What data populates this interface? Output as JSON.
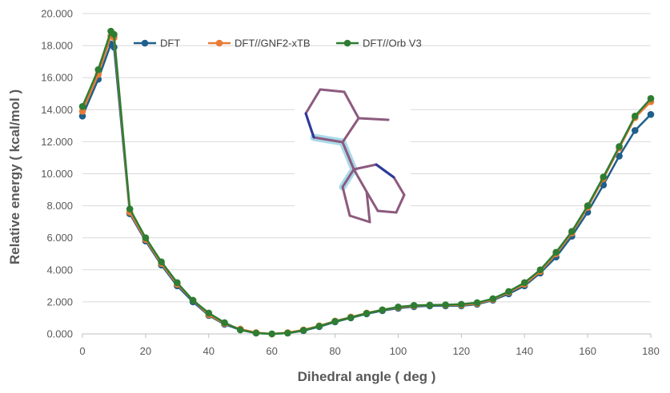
{
  "chart_data": {
    "type": "line",
    "title": "",
    "xlabel": "Dihedral angle ( deg )",
    "ylabel": "Relative energy ( kcal/mol )",
    "xlim": [
      0,
      180
    ],
    "ylim": [
      0,
      20
    ],
    "xticks": [
      0,
      20,
      40,
      60,
      80,
      100,
      120,
      140,
      160,
      180
    ],
    "yticks": [
      "0.000",
      "2.000",
      "4.000",
      "6.000",
      "8.000",
      "10.000",
      "12.000",
      "14.000",
      "16.000",
      "18.000",
      "20.000"
    ],
    "grid": "horizontal",
    "legend_position": "top",
    "x": [
      0,
      5,
      9,
      10,
      15,
      20,
      25,
      30,
      35,
      40,
      45,
      50,
      55,
      60,
      65,
      70,
      75,
      80,
      85,
      90,
      95,
      100,
      105,
      110,
      115,
      120,
      125,
      130,
      135,
      140,
      145,
      150,
      155,
      160,
      165,
      170,
      175,
      180
    ],
    "series": [
      {
        "name": "DFT",
        "color": "#1f5f8b",
        "values": [
          13.6,
          15.9,
          18.1,
          17.9,
          7.5,
          5.8,
          4.3,
          3.0,
          2.0,
          1.15,
          0.6,
          0.25,
          0.05,
          0.0,
          0.05,
          0.2,
          0.45,
          0.75,
          1.0,
          1.25,
          1.45,
          1.6,
          1.7,
          1.75,
          1.75,
          1.75,
          1.85,
          2.1,
          2.5,
          3.0,
          3.8,
          4.8,
          6.1,
          7.6,
          9.3,
          11.1,
          12.7,
          13.7
        ]
      },
      {
        "name": "DFT//GNF2-xTB",
        "color": "#e97b36",
        "values": [
          13.9,
          16.2,
          18.6,
          18.5,
          7.6,
          5.9,
          4.4,
          3.1,
          2.1,
          1.2,
          0.65,
          0.3,
          0.08,
          0.0,
          0.08,
          0.25,
          0.5,
          0.8,
          1.05,
          1.3,
          1.5,
          1.65,
          1.75,
          1.8,
          1.8,
          1.8,
          1.9,
          2.15,
          2.6,
          3.1,
          3.9,
          5.0,
          6.3,
          7.9,
          9.7,
          11.6,
          13.5,
          14.5
        ]
      },
      {
        "name": "DFT//Orb V3",
        "color": "#2e7d32",
        "values": [
          14.2,
          16.5,
          18.9,
          18.7,
          7.8,
          6.0,
          4.5,
          3.2,
          2.1,
          1.3,
          0.7,
          0.25,
          0.05,
          0.0,
          0.05,
          0.22,
          0.48,
          0.78,
          1.02,
          1.28,
          1.5,
          1.68,
          1.78,
          1.8,
          1.82,
          1.85,
          1.95,
          2.2,
          2.65,
          3.2,
          4.0,
          5.1,
          6.4,
          8.0,
          9.8,
          11.7,
          13.6,
          14.7
        ]
      }
    ]
  }
}
